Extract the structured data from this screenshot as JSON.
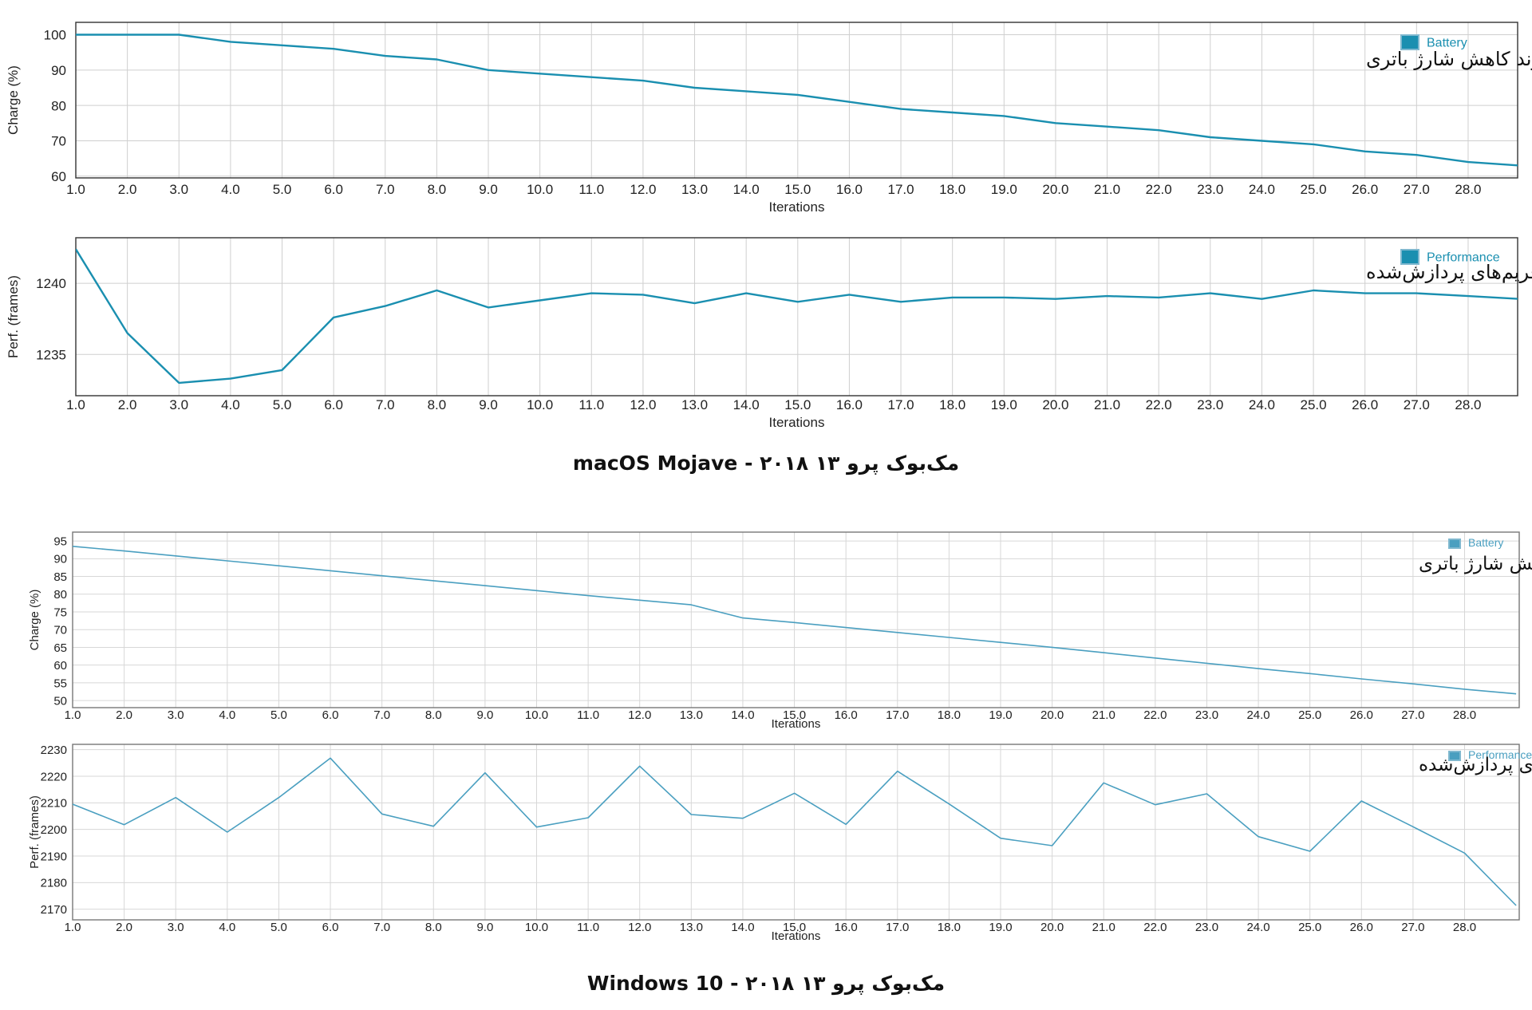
{
  "sections": [
    {
      "title": "macOS Mojave - مک‌بوک پرو ۱۳ ۲۰۱۸"
    },
    {
      "title": "Windows 10 - مک‌بوک پرو ۱۳ ۲۰۱۸"
    }
  ],
  "chart_data": [
    {
      "type": "line",
      "title": "",
      "annotation": "روند کاهش شارژ باتری",
      "xlabel": "Iterations",
      "ylabel": "Charge (%)",
      "x": [
        1,
        2,
        3,
        4,
        5,
        6,
        7,
        8,
        9,
        10,
        11,
        12,
        13,
        14,
        15,
        16,
        17,
        18,
        19,
        20,
        21,
        22,
        23,
        24,
        25,
        26,
        27,
        28,
        29
      ],
      "xticks": [
        "1.0",
        "2.0",
        "3.0",
        "4.0",
        "5.0",
        "6.0",
        "7.0",
        "8.0",
        "9.0",
        "10.0",
        "11.0",
        "12.0",
        "13.0",
        "14.0",
        "15.0",
        "16.0",
        "17.0",
        "18.0",
        "19.0",
        "20.0",
        "21.0",
        "22.0",
        "23.0",
        "24.0",
        "25.0",
        "26.0",
        "27.0",
        "28.0"
      ],
      "yticks": [
        "60",
        "70",
        "80",
        "90",
        "100"
      ],
      "ylim": [
        59.5,
        103.5
      ],
      "xlim": [
        1,
        28.96
      ],
      "grid": true,
      "legend_position": "top-right",
      "series": [
        {
          "name": "Battery",
          "color": "#1a8fb0",
          "values": [
            100,
            100,
            100,
            98,
            97,
            96,
            94,
            93,
            90,
            89,
            88,
            87,
            85,
            84,
            83,
            81,
            79,
            78,
            77,
            75,
            74,
            73,
            71,
            70,
            69,
            67,
            66,
            64,
            63
          ]
        }
      ]
    },
    {
      "type": "line",
      "title": "",
      "annotation": "روند افت تعداد فریم‌های پردازش‌شده",
      "xlabel": "Iterations",
      "ylabel": "Perf. (frames)",
      "x": [
        1,
        2,
        3,
        4,
        5,
        6,
        7,
        8,
        9,
        10,
        11,
        12,
        13,
        14,
        15,
        16,
        17,
        18,
        19,
        20,
        21,
        22,
        23,
        24,
        25,
        26,
        27,
        28,
        29
      ],
      "xticks": [
        "1.0",
        "2.0",
        "3.0",
        "4.0",
        "5.0",
        "6.0",
        "7.0",
        "8.0",
        "9.0",
        "10.0",
        "11.0",
        "12.0",
        "13.0",
        "14.0",
        "15.0",
        "16.0",
        "17.0",
        "18.0",
        "19.0",
        "20.0",
        "21.0",
        "22.0",
        "23.0",
        "24.0",
        "25.0",
        "26.0",
        "27.0",
        "28.0"
      ],
      "yticks": [
        "1235",
        "1240"
      ],
      "ylim": [
        1232.1,
        1243.2
      ],
      "xlim": [
        1,
        28.96
      ],
      "grid": true,
      "legend_position": "top-right",
      "series": [
        {
          "name": "Performance",
          "color": "#1a8fb0",
          "values": [
            1242.4,
            1236.5,
            1233.0,
            1233.3,
            1233.9,
            1237.6,
            1238.4,
            1239.5,
            1238.3,
            1238.8,
            1239.3,
            1239.2,
            1238.6,
            1239.3,
            1238.7,
            1239.2,
            1238.7,
            1239.0,
            1239.0,
            1238.9,
            1239.1,
            1239.0,
            1239.3,
            1238.9,
            1239.5,
            1239.3,
            1239.3,
            1239.1,
            1238.9
          ]
        }
      ]
    },
    {
      "type": "line",
      "title": "",
      "annotation": "روند کاهش شارژ باتری",
      "xlabel": "Iterations",
      "ylabel": "Charge (%)",
      "x": [
        1,
        2,
        3,
        4,
        5,
        6,
        7,
        8,
        9,
        10,
        11,
        12,
        13,
        14,
        15,
        16,
        17,
        18,
        19,
        20,
        21,
        22,
        23,
        24,
        25,
        26,
        27,
        28,
        29
      ],
      "xticks": [
        "1.0",
        "2.0",
        "3.0",
        "4.0",
        "5.0",
        "6.0",
        "7.0",
        "8.0",
        "9.0",
        "10.0",
        "11.0",
        "12.0",
        "13.0",
        "14.0",
        "15.0",
        "16.0",
        "17.0",
        "18.0",
        "19.0",
        "20.0",
        "21.0",
        "22.0",
        "23.0",
        "24.0",
        "25.0",
        "26.0",
        "27.0",
        "28.0"
      ],
      "yticks": [
        "50",
        "55",
        "60",
        "65",
        "70",
        "75",
        "80",
        "85",
        "90",
        "95"
      ],
      "ylim": [
        48,
        97.5
      ],
      "xlim": [
        1,
        29.06
      ],
      "grid": true,
      "legend_position": "top-right",
      "series": [
        {
          "name": "Battery",
          "color": "#4a9fc0",
          "values": [
            93.5,
            92.2,
            90.8,
            89.4,
            88.0,
            86.6,
            85.2,
            83.8,
            82.4,
            81.0,
            79.6,
            78.3,
            77.0,
            73.3,
            72.0,
            70.6,
            69.2,
            67.8,
            66.4,
            65.0,
            63.5,
            62.0,
            60.5,
            59.0,
            57.6,
            56.1,
            54.7,
            53.2,
            51.9
          ]
        }
      ]
    },
    {
      "type": "line",
      "title": "",
      "annotation": "روند افت تعداد فریم‌های پردازش‌شده",
      "xlabel": "Iterations",
      "ylabel": "Perf. (frames)",
      "x": [
        1,
        2,
        3,
        4,
        5,
        6,
        7,
        8,
        9,
        10,
        11,
        12,
        13,
        14,
        15,
        16,
        17,
        18,
        19,
        20,
        21,
        22,
        23,
        24,
        25,
        26,
        27,
        28,
        29
      ],
      "xticks": [
        "1.0",
        "2.0",
        "3.0",
        "4.0",
        "5.0",
        "6.0",
        "7.0",
        "8.0",
        "9.0",
        "10.0",
        "11.0",
        "12.0",
        "13.0",
        "14.0",
        "15.0",
        "16.0",
        "17.0",
        "18.0",
        "19.0",
        "20.0",
        "21.0",
        "22.0",
        "23.0",
        "24.0",
        "25.0",
        "26.0",
        "27.0",
        "28.0"
      ],
      "yticks": [
        "2170",
        "2180",
        "2190",
        "2200",
        "2210",
        "2220",
        "2230"
      ],
      "ylim": [
        2166,
        2232
      ],
      "xlim": [
        1,
        29.06
      ],
      "grid": true,
      "legend_position": "top-right",
      "series": [
        {
          "name": "Performance",
          "color": "#4a9fc0",
          "values": [
            2209.5,
            2201.8,
            2212.0,
            2199.0,
            2212.0,
            2226.8,
            2205.8,
            2201.2,
            2221.3,
            2200.9,
            2204.4,
            2223.8,
            2205.6,
            2204.2,
            2213.6,
            2201.9,
            2221.9,
            2209.6,
            2196.7,
            2193.9,
            2217.5,
            2209.3,
            2213.4,
            2197.3,
            2191.8,
            2210.7,
            2201.0,
            2191.1,
            2171.4
          ]
        }
      ]
    }
  ]
}
